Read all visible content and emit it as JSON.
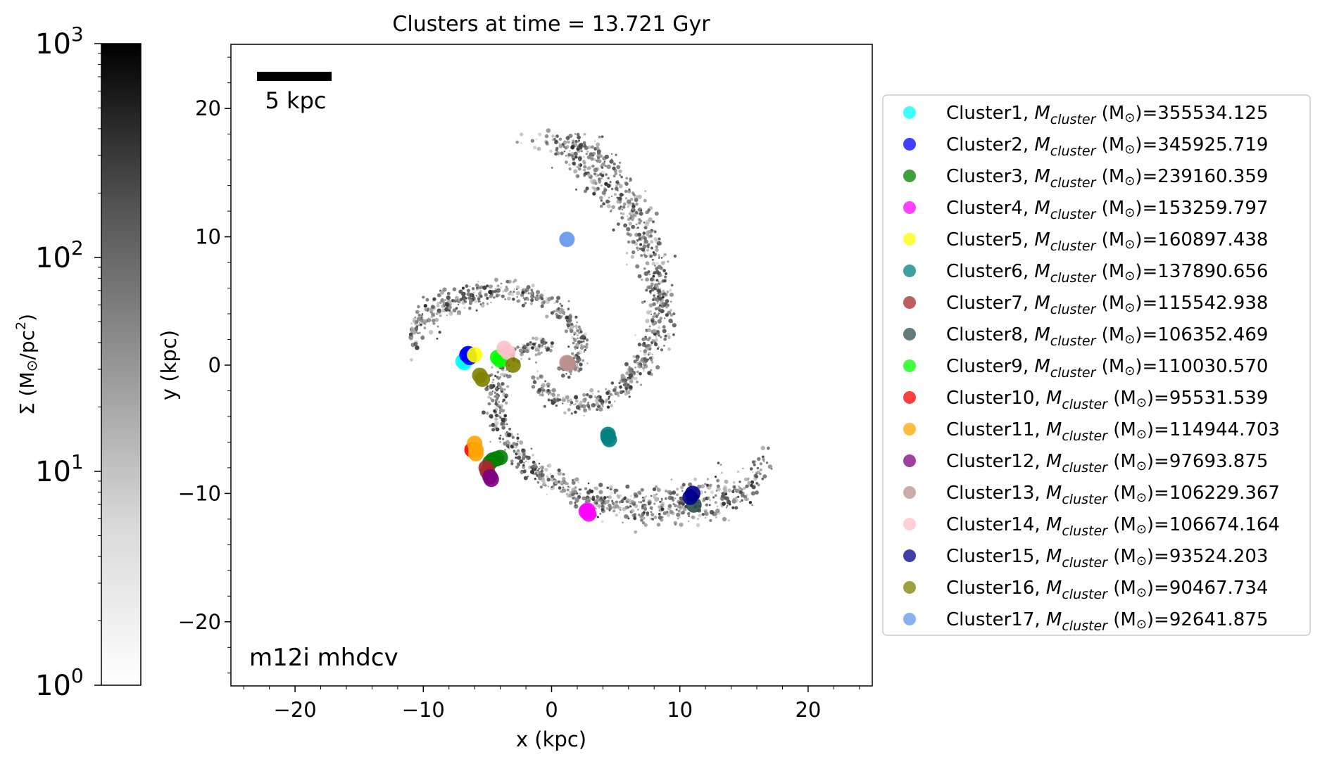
{
  "figure": {
    "title": "Clusters at time = 13.721 Gyr",
    "xlabel": "x (kpc)",
    "ylabel": "y (kpc)",
    "scalebar_label": "5 kpc",
    "sim_label": "m12i mhdcv",
    "colorbar": {
      "label_main": "Σ (M",
      "label_sun": "⊙",
      "label_unit": "/pc",
      "label_exp": "2",
      "label_close": ")",
      "range": [
        1,
        1000
      ],
      "scale": "log",
      "colormap": "Greys",
      "ticks": [
        {
          "base": "10",
          "exp": "0",
          "value": 1
        },
        {
          "base": "10",
          "exp": "1",
          "value": 10
        },
        {
          "base": "10",
          "exp": "2",
          "value": 100
        },
        {
          "base": "10",
          "exp": "3",
          "value": 1000
        }
      ]
    }
  },
  "chart_data": {
    "type": "scatter",
    "title": "Clusters at time = 13.721 Gyr",
    "xlabel": "x (kpc)",
    "ylabel": "y (kpc)",
    "xlim": [
      -25,
      25
    ],
    "ylim": [
      -25,
      25
    ],
    "xticks": [
      -20,
      -10,
      0,
      10,
      20
    ],
    "yticks": [
      -20,
      -10,
      0,
      10,
      20
    ],
    "xtick_labels": [
      "−20",
      "−10",
      "0",
      "10",
      "20"
    ],
    "ytick_labels": [
      "−20",
      "−10",
      "0",
      "10",
      "20"
    ],
    "background": "gas surface density map (grayscale, log scale 10^0–10^3 M⊙/pc²)",
    "legend_placement": "outside right",
    "series": [
      {
        "name": "Cluster1",
        "mass": "355534.125",
        "color": "#00ffff",
        "points": [
          [
            -6.9,
            0.3
          ],
          [
            -6.7,
            0.5
          ],
          [
            -6.8,
            0.2
          ]
        ]
      },
      {
        "name": "Cluster2",
        "mass": "345925.719",
        "color": "#0000ff",
        "points": [
          [
            -6.6,
            0.8
          ],
          [
            -6.4,
            0.6
          ],
          [
            -6.5,
            0.9
          ]
        ]
      },
      {
        "name": "Cluster3",
        "mass": "239160.359",
        "color": "#008000",
        "points": [
          [
            -4.6,
            -7.4
          ],
          [
            -4.3,
            -7.3
          ],
          [
            -4.0,
            -7.2
          ],
          [
            -4.8,
            -7.6
          ]
        ]
      },
      {
        "name": "Cluster4",
        "mass": "153259.797",
        "color": "#ff00ff",
        "points": [
          [
            2.8,
            -11.3
          ],
          [
            2.9,
            -11.6
          ],
          [
            2.7,
            -11.4
          ]
        ]
      },
      {
        "name": "Cluster5",
        "mass": "160897.438",
        "color": "#ffff00",
        "points": [
          [
            -6.0,
            0.8
          ]
        ]
      },
      {
        "name": "Cluster6",
        "mass": "137890.656",
        "color": "#008080",
        "points": [
          [
            4.4,
            -5.4
          ],
          [
            4.5,
            -5.8
          ],
          [
            4.4,
            -5.6
          ]
        ]
      },
      {
        "name": "Cluster7",
        "mass": "115542.938",
        "color": "#a52a2a",
        "points": [
          [
            -5.1,
            -8.0
          ],
          [
            -5.0,
            -8.3
          ]
        ]
      },
      {
        "name": "Cluster8",
        "mass": "106352.469",
        "color": "#2f4f4f",
        "points": [
          [
            11.1,
            -10.9
          ]
        ]
      },
      {
        "name": "Cluster9",
        "mass": "110030.570",
        "color": "#00ff00",
        "points": [
          [
            -4.2,
            0.6
          ],
          [
            -4.0,
            0.4
          ]
        ]
      },
      {
        "name": "Cluster10",
        "mass": "95531.539",
        "color": "#ff0000",
        "points": [
          [
            -6.2,
            -6.6
          ]
        ]
      },
      {
        "name": "Cluster11",
        "mass": "114944.703",
        "color": "#ffa500",
        "points": [
          [
            -6.0,
            -6.1
          ],
          [
            -5.9,
            -6.6
          ],
          [
            -5.9,
            -6.9
          ]
        ]
      },
      {
        "name": "Cluster12",
        "mass": "97693.875",
        "color": "#800080",
        "points": [
          [
            -4.8,
            -8.7
          ],
          [
            -4.7,
            -8.9
          ]
        ]
      },
      {
        "name": "Cluster13",
        "mass": "106229.367",
        "color": "#bc8f8f",
        "points": [
          [
            1.2,
            0.2
          ],
          [
            1.3,
            0.1
          ]
        ]
      },
      {
        "name": "Cluster14",
        "mass": "106674.164",
        "color": "#ffc0cb",
        "points": [
          [
            -3.7,
            1.3
          ],
          [
            -3.4,
            1.0
          ]
        ]
      },
      {
        "name": "Cluster15",
        "mass": "93524.203",
        "color": "#00008b",
        "points": [
          [
            10.8,
            -10.3
          ],
          [
            11.0,
            -10.0
          ]
        ]
      },
      {
        "name": "Cluster16",
        "mass": "90467.734",
        "color": "#808000",
        "points": [
          [
            -5.6,
            -0.8
          ],
          [
            -5.4,
            -1.1
          ],
          [
            -3.0,
            0.0
          ]
        ]
      },
      {
        "name": "Cluster17",
        "mass": "92641.875",
        "color": "#6495ed",
        "points": [
          [
            1.2,
            9.8
          ]
        ]
      }
    ]
  }
}
